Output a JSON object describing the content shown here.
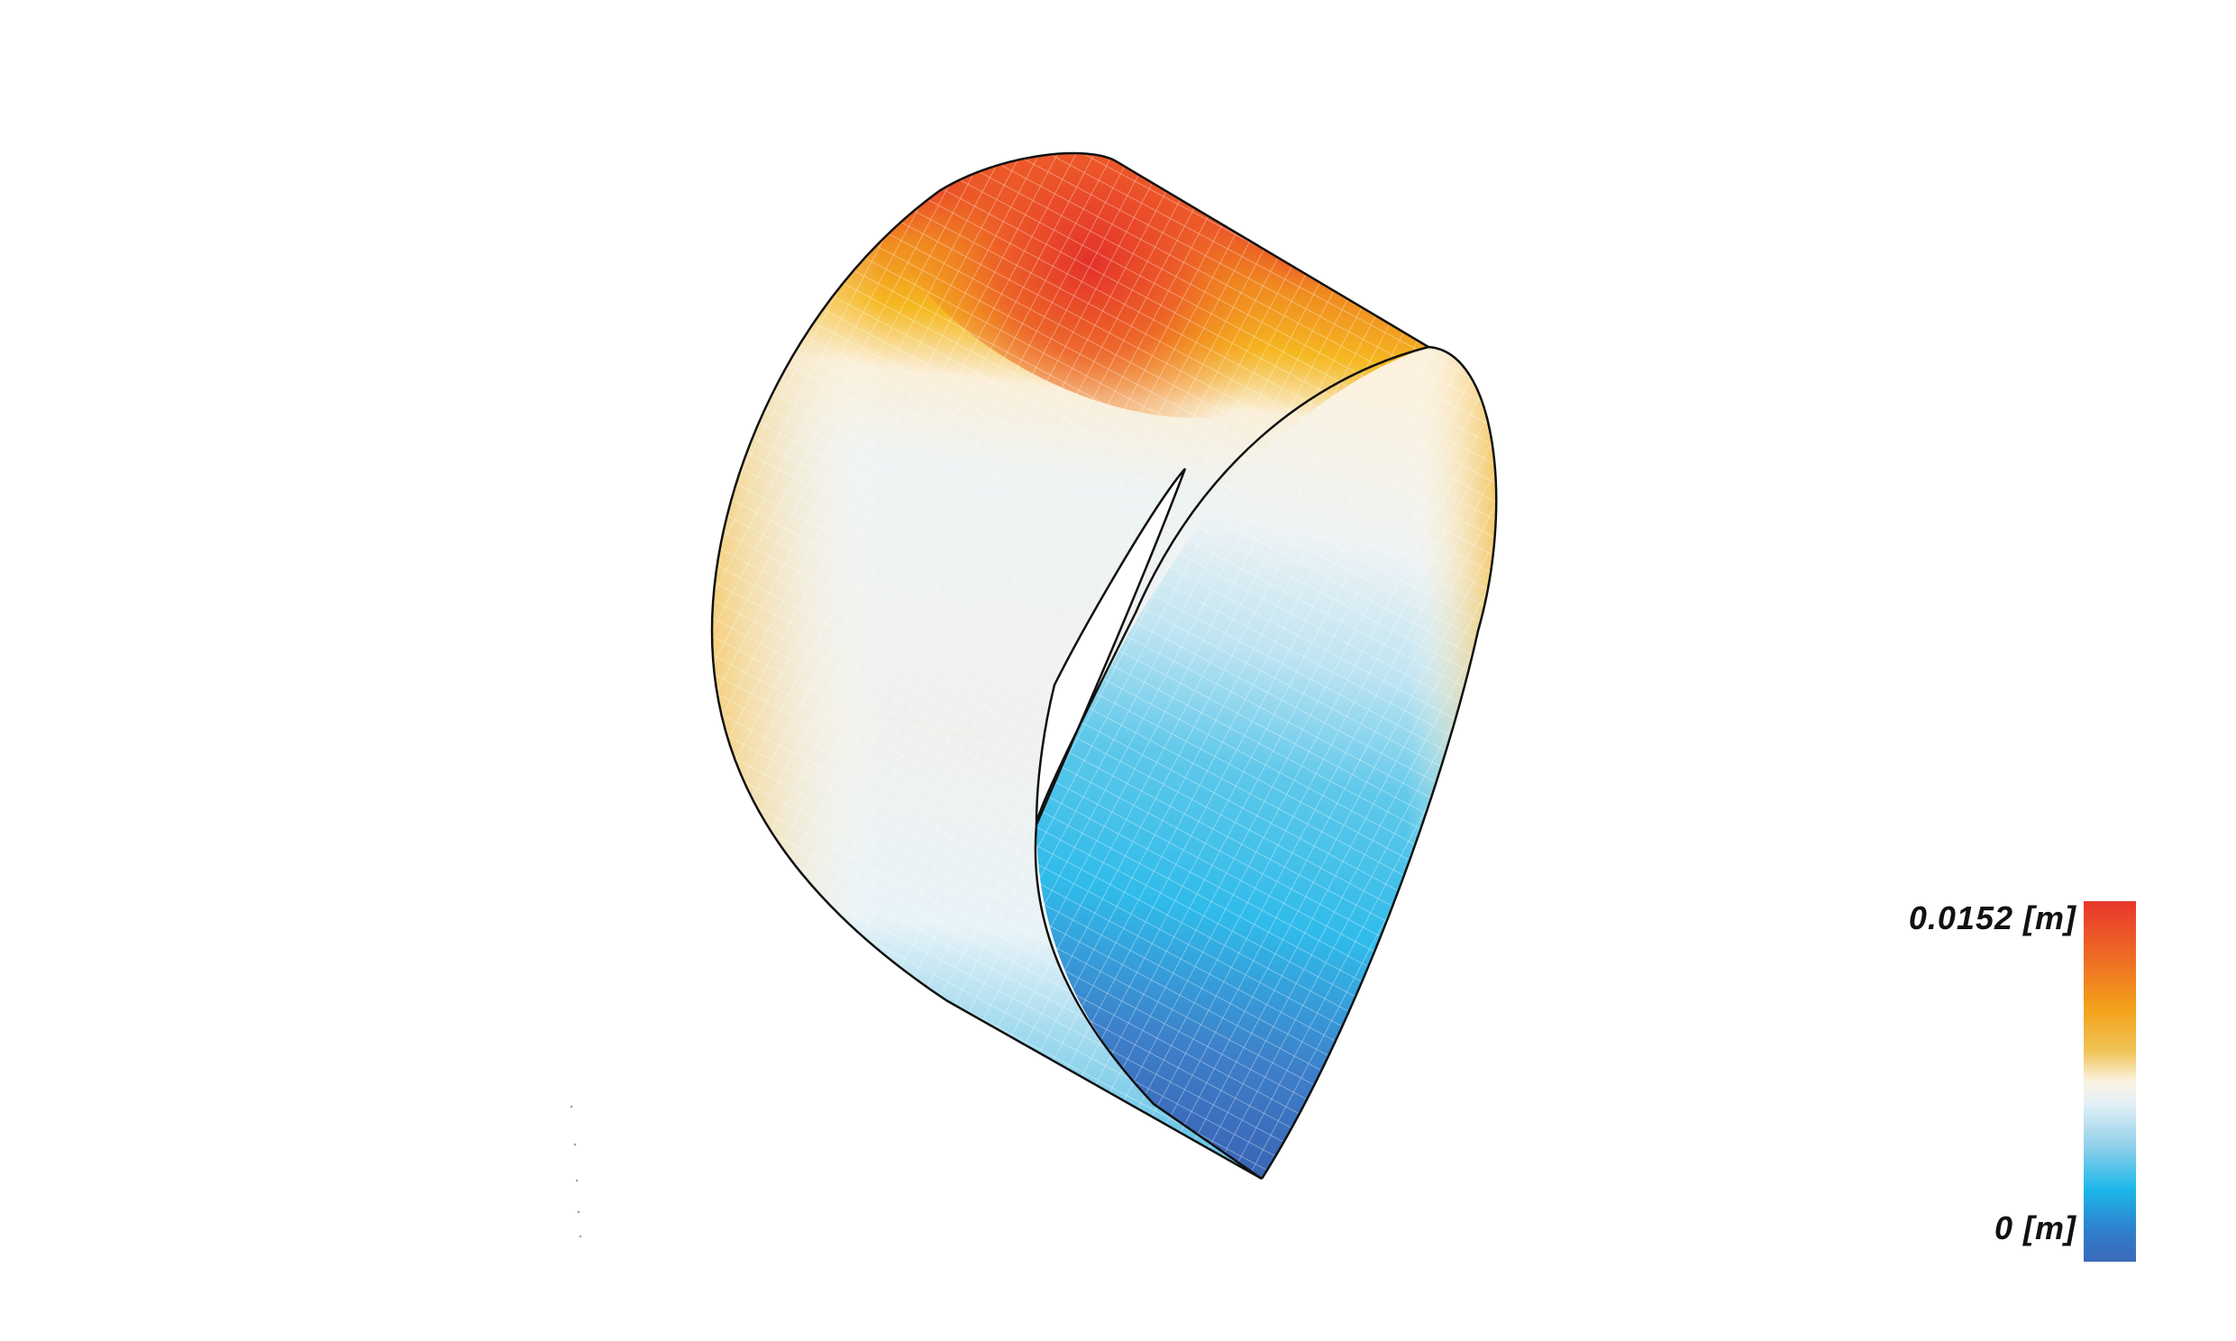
{
  "legend": {
    "max_label": "0.0152 [m]",
    "min_label": "0 [m]"
  },
  "colormap": [
    "#e8362c",
    "#f3a21a",
    "#fbf3e3",
    "#1cb7ea",
    "#3b6bba"
  ]
}
